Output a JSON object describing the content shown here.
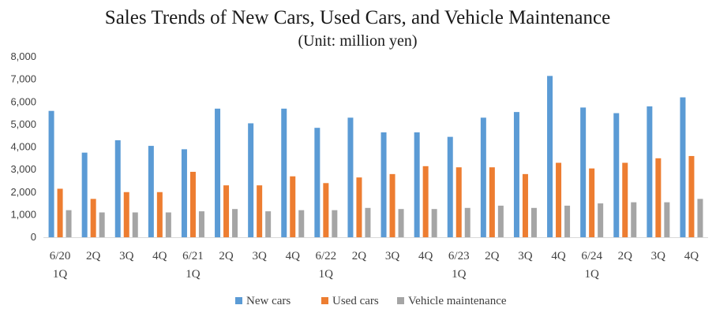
{
  "chart_data": {
    "type": "bar",
    "title": "Sales Trends of New Cars, Used Cars, and Vehicle Maintenance",
    "subtitle": "(Unit: million yen)",
    "categories": [
      [
        "6/20",
        "1Q"
      ],
      [
        "2Q"
      ],
      [
        "3Q"
      ],
      [
        "4Q"
      ],
      [
        "6/21",
        "1Q"
      ],
      [
        "2Q"
      ],
      [
        "3Q"
      ],
      [
        "4Q"
      ],
      [
        "6/22",
        "1Q"
      ],
      [
        "2Q"
      ],
      [
        "3Q"
      ],
      [
        "4Q"
      ],
      [
        "6/23",
        "1Q"
      ],
      [
        "2Q"
      ],
      [
        "3Q"
      ],
      [
        "4Q"
      ],
      [
        "6/24",
        "1Q"
      ],
      [
        "2Q"
      ],
      [
        "3Q"
      ],
      [
        "4Q"
      ]
    ],
    "series": [
      {
        "name": "New cars",
        "color": "#5b9bd5",
        "values": [
          5600,
          3750,
          4300,
          4050,
          3900,
          5700,
          5050,
          5700,
          4850,
          5300,
          4650,
          4650,
          4450,
          5300,
          5550,
          7150,
          5750,
          5500,
          5800,
          6200
        ]
      },
      {
        "name": "Used cars",
        "color": "#ed7d31",
        "values": [
          2150,
          1700,
          2000,
          2000,
          2900,
          2300,
          2300,
          2700,
          2400,
          2650,
          2800,
          3150,
          3100,
          3100,
          2800,
          3300,
          3050,
          3300,
          3500,
          3600
        ]
      },
      {
        "name": "Vehicle maintenance",
        "color": "#a5a5a5",
        "values": [
          1200,
          1100,
          1100,
          1100,
          1150,
          1250,
          1150,
          1200,
          1200,
          1300,
          1250,
          1250,
          1300,
          1400,
          1300,
          1400,
          1500,
          1550,
          1550,
          1700
        ]
      }
    ],
    "yticks": [
      "0",
      "1,000",
      "2,000",
      "3,000",
      "4,000",
      "5,000",
      "6,000",
      "7,000",
      "8,000"
    ],
    "ylim": [
      0,
      8000
    ],
    "grid": false,
    "legend_position": "bottom"
  }
}
